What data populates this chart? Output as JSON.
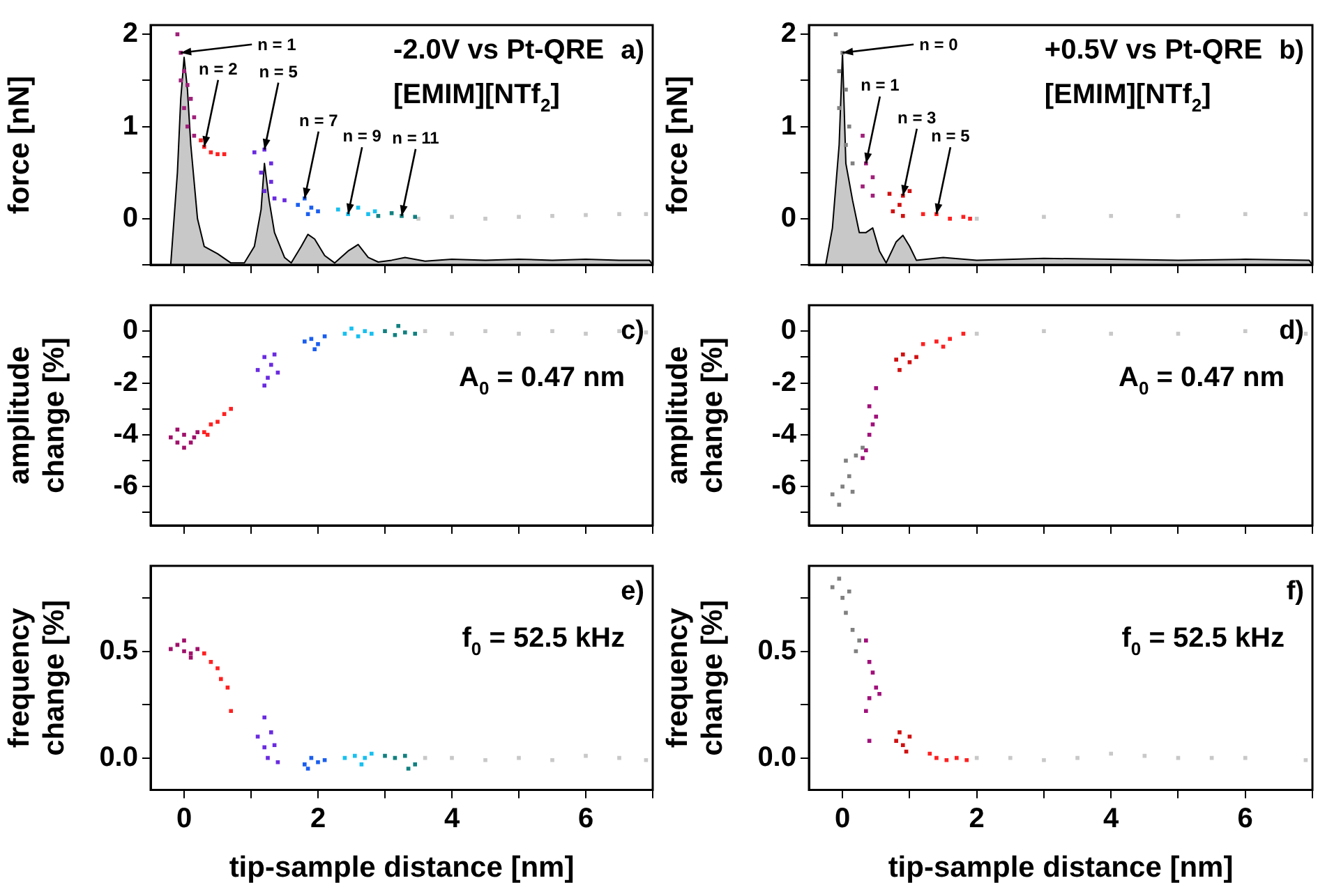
{
  "chart_data": [
    {
      "type": "scatter",
      "title": "a)",
      "ylabel": "force [nN]",
      "tick_labels": "y",
      "annotations": [
        "-2.0V vs Pt-QRE",
        "[EMIM][NTf$_{2}$]",
        {
          "text": "n = 1",
          "x": -0.05,
          "y": 1.8
        },
        {
          "text": "n = 2",
          "x": 0.3,
          "y": 0.78
        },
        {
          "text": "n = 5",
          "x": 1.2,
          "y": 0.75
        },
        {
          "text": "n = 7",
          "x": 1.8,
          "y": 0.22
        },
        {
          "text": "n = 9",
          "x": 2.45,
          "y": 0.05
        },
        {
          "text": "n = 11",
          "x": 3.25,
          "y": 0.03
        }
      ],
      "xlim": [
        -0.5,
        7
      ],
      "xticks": [
        0,
        {
          "value": 1,
          "label": null
        },
        2,
        {
          "value": 3,
          "label": null
        },
        4,
        {
          "value": 5,
          "label": null
        },
        6,
        {
          "value": 7,
          "label": null
        }
      ],
      "ylim": [
        -0.5,
        2.1
      ],
      "yticks": [
        {
          "value": -0.5,
          "label": null
        },
        0,
        {
          "value": 0.5,
          "label": null
        },
        1,
        {
          "value": 1.5,
          "label": null
        },
        2
      ],
      "series": [
        {
          "type": "area",
          "color": "#c8c8c8",
          "x": [
            -0.2,
            -0.1,
            -0.05,
            0,
            0.05,
            0.1,
            0.2,
            0.3,
            0.5,
            0.7,
            0.9,
            1.05,
            1.15,
            1.2,
            1.27,
            1.35,
            1.5,
            1.6,
            1.75,
            1.85,
            1.95,
            2.1,
            2.25,
            2.45,
            2.6,
            2.75,
            2.9,
            3.1,
            3.3,
            3.6,
            4,
            4.5,
            5,
            5.5,
            6,
            6.5,
            6.95,
            7
          ],
          "values": [
            -0.5,
            0.5,
            1.3,
            1.75,
            1.4,
            0.8,
            0,
            -0.3,
            -0.38,
            -0.48,
            -0.48,
            -0.3,
            0.1,
            0.6,
            0.2,
            -0.15,
            -0.42,
            -0.48,
            -0.3,
            -0.17,
            -0.22,
            -0.4,
            -0.48,
            -0.35,
            -0.28,
            -0.42,
            -0.47,
            -0.45,
            -0.42,
            -0.46,
            -0.44,
            -0.45,
            -0.44,
            -0.45,
            -0.44,
            -0.45,
            -0.45,
            -0.5
          ]
        },
        {
          "marker": "square",
          "color": "#a0207a",
          "x": [
            -0.1,
            -0.05,
            0,
            0.05,
            -0.05,
            0.1,
            0,
            0.15,
            0.05,
            0.15
          ],
          "values": [
            2,
            1.8,
            1.6,
            1.45,
            1.5,
            1.3,
            1.2,
            1.1,
            1,
            0.9
          ]
        },
        {
          "marker": "square",
          "color": "#ff2020",
          "x": [
            0.25,
            0.3,
            0.4,
            0.5,
            0.6
          ],
          "values": [
            0.85,
            0.78,
            0.72,
            0.7,
            0.7
          ]
        },
        {
          "marker": "square",
          "color": "#6a2be0",
          "x": [
            1.05,
            1.2,
            1.3,
            1.15,
            1.3,
            1.2,
            1.35,
            1.5
          ],
          "values": [
            0.72,
            0.75,
            0.6,
            0.5,
            0.4,
            0.3,
            0.22,
            0.2
          ]
        },
        {
          "marker": "square",
          "color": "#1a5ef0",
          "x": [
            1.7,
            1.8,
            1.9,
            2,
            1.85
          ],
          "values": [
            0.15,
            0.22,
            0.12,
            0.08,
            0.05
          ]
        },
        {
          "marker": "square",
          "color": "#18c0f0",
          "x": [
            2.3,
            2.45,
            2.6,
            2.75,
            2.85
          ],
          "values": [
            0.1,
            0.05,
            0.12,
            0.05,
            0.08
          ]
        },
        {
          "marker": "square",
          "color": "#128080",
          "x": [
            2.9,
            3.1,
            3.25,
            3.45
          ],
          "values": [
            0.03,
            0.06,
            0.03,
            0.02
          ]
        },
        {
          "marker": "square",
          "color": "#c8c8c8",
          "x": [
            3.5,
            4,
            4.5,
            5,
            5.5,
            6,
            6.5,
            6.9
          ],
          "values": [
            0,
            0.02,
            0,
            0.02,
            0.03,
            0.04,
            0.05,
            0.05
          ]
        }
      ]
    },
    {
      "type": "scatter",
      "title": "b)",
      "ylabel": "force [nN]",
      "tick_labels": "y",
      "annotations": [
        "+0.5V vs Pt-QRE",
        "[EMIM][NTf$_{2}$]",
        {
          "text": "n = 0",
          "x": 0,
          "y": 1.8
        },
        {
          "text": "n = 1",
          "x": 0.35,
          "y": 0.6
        },
        {
          "text": "n = 3",
          "x": 0.9,
          "y": 0.25
        },
        {
          "text": "n = 5",
          "x": 1.4,
          "y": 0.05
        }
      ],
      "xlim": [
        -0.5,
        7
      ],
      "xticks": [
        0,
        {
          "value": 1,
          "label": null
        },
        2,
        {
          "value": 3,
          "label": null
        },
        4,
        {
          "value": 5,
          "label": null
        },
        6,
        {
          "value": 7,
          "label": null
        }
      ],
      "ylim": [
        -0.5,
        2.1
      ],
      "yticks": [
        {
          "value": -0.5,
          "label": null
        },
        0,
        {
          "value": 0.5,
          "label": null
        },
        1,
        {
          "value": 1.5,
          "label": null
        },
        2
      ],
      "series": [
        {
          "type": "area",
          "color": "#c8c8c8",
          "x": [
            -0.25,
            -0.15,
            -0.05,
            0,
            0.05,
            0.15,
            0.25,
            0.35,
            0.45,
            0.55,
            0.65,
            0.8,
            0.9,
            1,
            1.1,
            1.5,
            2,
            3,
            4,
            5,
            6,
            6.95,
            7
          ],
          "values": [
            -0.5,
            -0.1,
            0.8,
            1.8,
            0.6,
            0.2,
            -0.15,
            -0.15,
            -0.1,
            -0.35,
            -0.48,
            -0.25,
            -0.18,
            -0.3,
            -0.45,
            -0.42,
            -0.45,
            -0.43,
            -0.44,
            -0.45,
            -0.44,
            -0.45,
            -0.5
          ]
        },
        {
          "marker": "square",
          "color": "#808080",
          "x": [
            -0.1,
            0,
            -0.05,
            0.05,
            -0.05,
            0.1,
            0.05,
            0.15
          ],
          "values": [
            2,
            1.8,
            1.6,
            1.4,
            1.2,
            1,
            0.8,
            0.6
          ]
        },
        {
          "marker": "square",
          "color": "#a0207a",
          "x": [
            0.3,
            0.35,
            0.45,
            0.3,
            0.45
          ],
          "values": [
            0.9,
            0.6,
            0.45,
            0.35,
            0.25
          ]
        },
        {
          "marker": "square",
          "color": "#d01010",
          "x": [
            0.7,
            0.9,
            1,
            0.85,
            0.75,
            0.9
          ],
          "values": [
            0.27,
            0.25,
            0.3,
            0.15,
            0.08,
            0.03
          ]
        },
        {
          "marker": "square",
          "color": "#ff2020",
          "x": [
            1.2,
            1.4,
            1.6,
            1.8,
            1.9
          ],
          "values": [
            0.05,
            0.05,
            0,
            0.02,
            0
          ]
        },
        {
          "marker": "square",
          "color": "#c8c8c8",
          "x": [
            2,
            3,
            4,
            5,
            6,
            6.9
          ],
          "values": [
            0,
            0.02,
            0.03,
            0.03,
            0.05,
            0.05
          ]
        }
      ]
    },
    {
      "type": "scatter",
      "title": "c)",
      "ylabel": "amplitude change [%]",
      "marker": "square",
      "tick_labels": "y",
      "annotations": [
        "A$_{0}$ = 0.47 nm"
      ],
      "xlim": [
        -0.5,
        7
      ],
      "xticks": [
        0,
        {
          "value": 1,
          "label": null
        },
        2,
        {
          "value": 3,
          "label": null
        },
        4,
        {
          "value": 5,
          "label": null
        },
        6,
        {
          "value": 7,
          "label": null
        }
      ],
      "ylim": [
        -7.5,
        1
      ],
      "yticks": [
        {
          "value": -7,
          "label": null
        },
        -6,
        {
          "value": -5,
          "label": null
        },
        -4,
        {
          "value": -3,
          "label": null
        },
        -2,
        {
          "value": -1,
          "label": null
        },
        0
      ],
      "series": [
        {
          "color": "#a0106a",
          "x": [
            -0.2,
            -0.1,
            0,
            0.1,
            0.2,
            0,
            -0.1,
            0.15
          ],
          "values": [
            -4.1,
            -3.8,
            -4,
            -4.3,
            -3.9,
            -4.5,
            -4.3,
            -4.1
          ]
        },
        {
          "color": "#ff2020",
          "x": [
            0.3,
            0.4,
            0.5,
            0.6,
            0.7,
            0.35
          ],
          "values": [
            -3.9,
            -3.6,
            -3.5,
            -3.2,
            -3,
            -4
          ]
        },
        {
          "color": "#6a2be0",
          "x": [
            1.1,
            1.2,
            1.3,
            1.25,
            1.4,
            1.2,
            1.35
          ],
          "values": [
            -1.5,
            -1,
            -1.3,
            -1.8,
            -1.6,
            -2.1,
            -0.9
          ]
        },
        {
          "color": "#1a5ef0",
          "x": [
            1.8,
            1.9,
            2,
            1.95,
            2.1
          ],
          "values": [
            -0.4,
            -0.3,
            -0.5,
            -0.7,
            -0.2
          ]
        },
        {
          "color": "#18c0f0",
          "x": [
            2.4,
            2.5,
            2.6,
            2.7,
            2.8
          ],
          "values": [
            -0.1,
            0.1,
            -0.2,
            0,
            -0.1
          ]
        },
        {
          "color": "#128080",
          "x": [
            3,
            3.15,
            3.3,
            3.45,
            3.2
          ],
          "values": [
            0,
            -0.15,
            -0.05,
            -0.1,
            0.2
          ]
        },
        {
          "color": "#c8c8c8",
          "x": [
            3.6,
            4,
            4.5,
            5,
            5.5,
            6,
            6.5,
            6.9
          ],
          "values": [
            0,
            -0.1,
            0,
            -0.1,
            0,
            -0.1,
            0,
            -0.05
          ]
        }
      ]
    },
    {
      "type": "scatter",
      "title": "d)",
      "ylabel": "amplitude change [%]",
      "marker": "square",
      "tick_labels": "y",
      "annotations": [
        "A$_{0}$ = 0.47 nm"
      ],
      "xlim": [
        -0.5,
        7
      ],
      "xticks": [
        0,
        {
          "value": 1,
          "label": null
        },
        2,
        {
          "value": 3,
          "label": null
        },
        4,
        {
          "value": 5,
          "label": null
        },
        6,
        {
          "value": 7,
          "label": null
        }
      ],
      "ylim": [
        -7.5,
        1
      ],
      "yticks": [
        {
          "value": -7,
          "label": null
        },
        -6,
        {
          "value": -5,
          "label": null
        },
        -4,
        {
          "value": -3,
          "label": null
        },
        -2,
        {
          "value": -1,
          "label": null
        },
        0
      ],
      "series": [
        {
          "color": "#808080",
          "x": [
            -0.15,
            -0.05,
            0,
            0.1,
            0.05,
            0.2,
            0.3,
            0.15
          ],
          "values": [
            -6.3,
            -6.7,
            -6,
            -5.6,
            -5,
            -4.8,
            -4.5,
            -6.2
          ]
        },
        {
          "color": "#a0107a",
          "x": [
            0.35,
            0.4,
            0.45,
            0.5,
            0.4,
            0.5,
            0.3
          ],
          "values": [
            -4.6,
            -4,
            -3.6,
            -3.3,
            -2.9,
            -2.2,
            -4.9
          ]
        },
        {
          "color": "#d01010",
          "x": [
            0.8,
            0.9,
            1,
            0.85,
            1.1
          ],
          "values": [
            -1.1,
            -0.9,
            -1.2,
            -1.5,
            -1
          ]
        },
        {
          "color": "#ff2020",
          "x": [
            1.2,
            1.4,
            1.6,
            1.8,
            1.5
          ],
          "values": [
            -0.5,
            -0.4,
            -0.3,
            -0.1,
            -0.6
          ]
        },
        {
          "color": "#c8c8c8",
          "x": [
            2,
            3,
            4,
            5,
            6,
            6.9
          ],
          "values": [
            -0.1,
            0,
            -0.1,
            -0.1,
            0,
            -0.1
          ]
        }
      ]
    },
    {
      "type": "scatter",
      "title": "e)",
      "ylabel": "frequency change [%]",
      "xlabel": "tip-sample distance [nm]",
      "marker": "square",
      "annotations": [
        "f$_{0}$ = 52.5 kHz"
      ],
      "xlim": [
        -0.5,
        7
      ],
      "xticks": [
        0,
        {
          "value": 1,
          "label": null
        },
        2,
        {
          "value": 3,
          "label": null
        },
        4,
        {
          "value": 5,
          "label": null
        },
        6,
        {
          "value": 7,
          "label": null
        }
      ],
      "ylim": [
        -0.15,
        0.9
      ],
      "yticks": [
        {
          "value": 0,
          "label": "0.0"
        },
        {
          "value": 0.25,
          "label": null
        },
        {
          "value": 0.5,
          "label": "0.5"
        },
        {
          "value": 0.75,
          "label": null
        }
      ],
      "series": [
        {
          "color": "#a0106a",
          "x": [
            -0.2,
            -0.1,
            0,
            0.1,
            0.2,
            0,
            0.1
          ],
          "values": [
            0.51,
            0.53,
            0.5,
            0.49,
            0.51,
            0.55,
            0.47
          ]
        },
        {
          "color": "#ff2020",
          "x": [
            0.3,
            0.4,
            0.5,
            0.55,
            0.65,
            0.7
          ],
          "values": [
            0.49,
            0.45,
            0.42,
            0.37,
            0.33,
            0.22
          ]
        },
        {
          "color": "#6a2be0",
          "x": [
            1.1,
            1.2,
            1.3,
            1.25,
            1.35,
            1.2,
            1.4
          ],
          "values": [
            0.1,
            0.05,
            0.12,
            0,
            0.06,
            0.19,
            -0.02
          ]
        },
        {
          "color": "#1a5ef0",
          "x": [
            1.8,
            1.9,
            2,
            2.1,
            1.85
          ],
          "values": [
            -0.03,
            0,
            -0.02,
            -0.01,
            -0.05
          ]
        },
        {
          "color": "#18c0f0",
          "x": [
            2.4,
            2.55,
            2.7,
            2.8,
            2.65
          ],
          "values": [
            0,
            0.01,
            0,
            0.02,
            -0.03
          ]
        },
        {
          "color": "#128080",
          "x": [
            3,
            3.15,
            3.3,
            3.45,
            3.35
          ],
          "values": [
            0.01,
            0,
            0.01,
            -0.03,
            -0.05
          ]
        },
        {
          "color": "#c8c8c8",
          "x": [
            3.6,
            4,
            4.5,
            5,
            5.5,
            6,
            6.5,
            6.9
          ],
          "values": [
            0,
            0,
            -0.01,
            0,
            -0.01,
            0.01,
            0,
            -0.01
          ]
        }
      ]
    },
    {
      "type": "scatter",
      "title": "f)",
      "ylabel": "frequency change [%]",
      "xlabel": "tip-sample distance [nm]",
      "marker": "square",
      "annotations": [
        "f$_{0}$ = 52.5 kHz"
      ],
      "xlim": [
        -0.5,
        7
      ],
      "xticks": [
        0,
        {
          "value": 1,
          "label": null
        },
        2,
        {
          "value": 3,
          "label": null
        },
        4,
        {
          "value": 5,
          "label": null
        },
        6,
        {
          "value": 7,
          "label": null
        }
      ],
      "ylim": [
        -0.15,
        0.9
      ],
      "yticks": [
        {
          "value": 0,
          "label": "0.0"
        },
        {
          "value": 0.25,
          "label": null
        },
        {
          "value": 0.5,
          "label": "0.5"
        },
        {
          "value": 0.75,
          "label": null
        }
      ],
      "series": [
        {
          "color": "#808080",
          "x": [
            -0.15,
            -0.05,
            0,
            0.1,
            0.05,
            0.15,
            0.25,
            0.2
          ],
          "values": [
            0.8,
            0.84,
            0.75,
            0.78,
            0.68,
            0.6,
            0.55,
            0.5
          ]
        },
        {
          "color": "#a0107a",
          "x": [
            0.35,
            0.4,
            0.45,
            0.5,
            0.4,
            0.35,
            0.55,
            0.4
          ],
          "values": [
            0.55,
            0.45,
            0.4,
            0.33,
            0.28,
            0.22,
            0.3,
            0.08
          ]
        },
        {
          "color": "#d01010",
          "x": [
            0.8,
            0.9,
            1,
            0.95,
            0.85
          ],
          "values": [
            0.08,
            0.06,
            0.1,
            0.03,
            0.12
          ]
        },
        {
          "color": "#ff2020",
          "x": [
            1.3,
            1.4,
            1.55,
            1.7,
            1.85
          ],
          "values": [
            0.02,
            0,
            -0.01,
            0,
            -0.01
          ]
        },
        {
          "color": "#c8c8c8",
          "x": [
            2,
            2.5,
            3,
            3.5,
            4,
            4.5,
            5,
            5.5,
            6,
            6.9
          ],
          "values": [
            0,
            0,
            -0.01,
            0,
            0.02,
            0.01,
            0,
            0,
            0,
            -0.01
          ]
        }
      ]
    }
  ]
}
